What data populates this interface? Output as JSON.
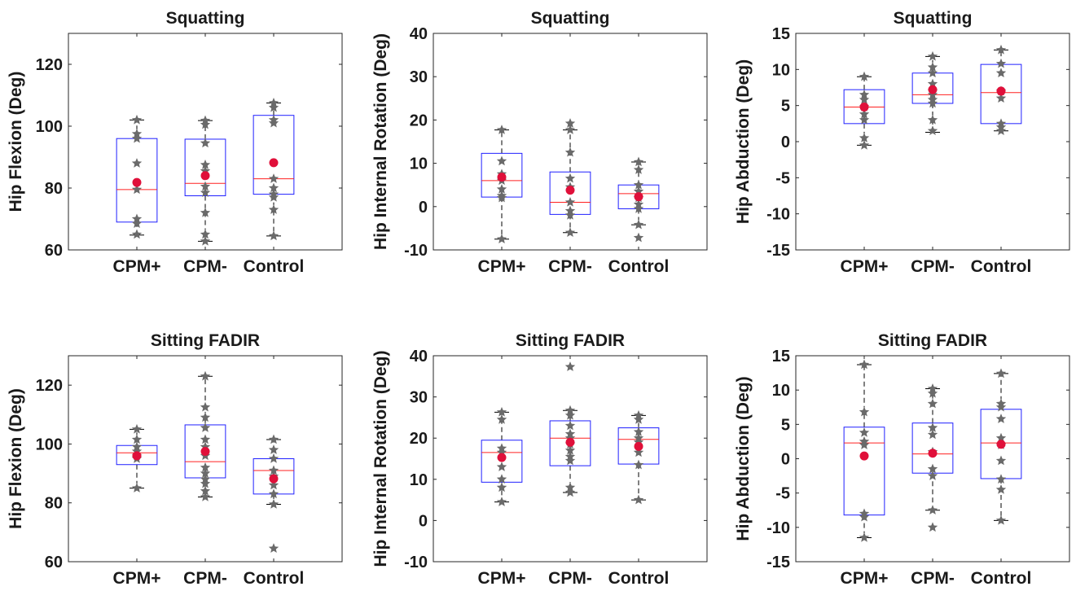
{
  "colors": {
    "box": "#2020ff",
    "median": "#ff2020",
    "mean": "#e0103a",
    "points": "#6a6a6a",
    "whisker": "#000000",
    "axes": "#262626"
  },
  "chart_data": [
    {
      "type": "box",
      "title": "Squatting",
      "ylabel": "Hip Flexion (Deg)",
      "ylim": [
        60,
        130
      ],
      "yticks": [
        "60",
        "80",
        "100",
        "120"
      ],
      "categories": [
        "CPM+",
        "CPM-",
        "Control"
      ],
      "groups": [
        {
          "q1": 69,
          "median": 79.5,
          "q3": 96,
          "whisker_low": 64.8,
          "whisker_high": 102,
          "mean": 81.8,
          "points": [
            102,
            97.5,
            96,
            88,
            79.5,
            70,
            68.5,
            65
          ]
        },
        {
          "q1": 77.5,
          "median": 81.5,
          "q3": 95.8,
          "whisker_low": 62.8,
          "whisker_high": 101.8,
          "mean": 84,
          "points": [
            101.8,
            100.5,
            94.5,
            87.5,
            85.5,
            80.5,
            78.5,
            72,
            65,
            62.8
          ]
        },
        {
          "q1": 78,
          "median": 83,
          "q3": 103.5,
          "whisker_low": 64.5,
          "whisker_high": 107.5,
          "mean": 88.2,
          "points": [
            107.5,
            106,
            102,
            101,
            83,
            80,
            78,
            77,
            73,
            64.5
          ]
        }
      ]
    },
    {
      "type": "box",
      "title": "Squatting",
      "ylabel": "Hip Internal Rotation (Deg)",
      "ylim": [
        -10,
        40
      ],
      "yticks": [
        "-10",
        "0",
        "10",
        "20",
        "30",
        "40"
      ],
      "categories": [
        "CPM+",
        "CPM-",
        "Control"
      ],
      "groups": [
        {
          "q1": 2.2,
          "median": 6,
          "q3": 12.3,
          "whisker_low": -7.5,
          "whisker_high": 17.7,
          "mean": 6.8,
          "points": [
            17.7,
            10.5,
            7.5,
            6,
            4,
            2.5,
            2,
            -7.5
          ]
        },
        {
          "q1": -1.8,
          "median": 1,
          "q3": 8,
          "whisker_low": -6,
          "whisker_high": 17.7,
          "mean": 3.8,
          "points": [
            19.2,
            17.7,
            12.5,
            6.5,
            4.5,
            1,
            -1,
            -2,
            -6
          ]
        },
        {
          "q1": -0.5,
          "median": 3,
          "q3": 5,
          "whisker_low": -4.2,
          "whisker_high": 10.3,
          "mean": 2.3,
          "points": [
            10.3,
            8.5,
            5,
            3.5,
            2,
            0.5,
            -0.5,
            -4.2,
            -7.2
          ]
        }
      ]
    },
    {
      "type": "box",
      "title": "Squatting",
      "ylabel": "Hip Abduction (Deg)",
      "ylim": [
        -15,
        15
      ],
      "yticks": [
        "-15",
        "-10",
        "-5",
        "0",
        "5",
        "10",
        "15"
      ],
      "categories": [
        "CPM+",
        "CPM-",
        "Control"
      ],
      "groups": [
        {
          "q1": 2.5,
          "median": 4.8,
          "q3": 7.2,
          "whisker_low": -0.5,
          "whisker_high": 9,
          "mean": 4.8,
          "points": [
            9,
            6.5,
            5.8,
            4.8,
            3.8,
            3,
            0.5,
            -0.5
          ]
        },
        {
          "q1": 5.3,
          "median": 6.5,
          "q3": 9.5,
          "whisker_low": 1.3,
          "whisker_high": 11.8,
          "mean": 7.2,
          "points": [
            11.8,
            10.3,
            9.5,
            8,
            7,
            6.5,
            5.8,
            5.3,
            3,
            1.5
          ]
        },
        {
          "q1": 2.5,
          "median": 6.8,
          "q3": 10.7,
          "whisker_low": 1.5,
          "whisker_high": 12.7,
          "mean": 7,
          "points": [
            12.7,
            10.8,
            9.5,
            7,
            6,
            2.5,
            2,
            1.5
          ]
        }
      ]
    },
    {
      "type": "box",
      "title": "Sitting FADIR",
      "ylabel": "Hip Flexion (Deg)",
      "ylim": [
        60,
        130
      ],
      "yticks": [
        "60",
        "80",
        "100",
        "120"
      ],
      "categories": [
        "CPM+",
        "CPM-",
        "Control"
      ],
      "groups": [
        {
          "q1": 93,
          "median": 97,
          "q3": 99.5,
          "whisker_low": 85,
          "whisker_high": 105,
          "mean": 96,
          "points": [
            105,
            101.5,
            99,
            97.5,
            96,
            95,
            85
          ]
        },
        {
          "q1": 88.5,
          "median": 94,
          "q3": 106.5,
          "whisker_low": 82,
          "whisker_high": 123,
          "mean": 97.5,
          "points": [
            123,
            112.5,
            109,
            105.5,
            101.5,
            99,
            96,
            92,
            90,
            88,
            86.5,
            84,
            82
          ]
        },
        {
          "q1": 83,
          "median": 91,
          "q3": 95,
          "whisker_low": 79.5,
          "whisker_high": 101.5,
          "mean": 88.2,
          "points": [
            101.5,
            98,
            95,
            91,
            89,
            86,
            83,
            79.5,
            64.5
          ]
        }
      ]
    },
    {
      "type": "box",
      "title": "Sitting FADIR",
      "ylabel": "Hip Internal Rotation (Deg)",
      "ylim": [
        -10,
        40
      ],
      "yticks": [
        "-10",
        "0",
        "10",
        "20",
        "30",
        "40"
      ],
      "categories": [
        "CPM+",
        "CPM-",
        "Control"
      ],
      "groups": [
        {
          "q1": 9.3,
          "median": 16.5,
          "q3": 19.5,
          "whisker_low": 4.5,
          "whisker_high": 26.3,
          "mean": 15.3,
          "points": [
            26.3,
            24.5,
            17.5,
            16.5,
            13,
            10,
            8,
            4.5
          ]
        },
        {
          "q1": 13.3,
          "median": 20,
          "q3": 24.2,
          "whisker_low": 6.8,
          "whisker_high": 26.7,
          "mean": 19,
          "points": [
            37.3,
            26.7,
            25.5,
            23,
            21,
            20,
            18.5,
            17,
            15.5,
            14.5,
            8,
            6.8
          ]
        },
        {
          "q1": 13.7,
          "median": 19.7,
          "q3": 22.5,
          "whisker_low": 5,
          "whisker_high": 25.5,
          "mean": 18,
          "points": [
            25.5,
            24.5,
            21.5,
            20,
            19,
            16.5,
            13.5,
            5
          ]
        }
      ]
    },
    {
      "type": "box",
      "title": "Sitting FADIR",
      "ylabel": "Hip Abduction (Deg)",
      "ylim": [
        -15,
        15
      ],
      "yticks": [
        "-15",
        "-10",
        "-5",
        "0",
        "5",
        "10",
        "15"
      ],
      "categories": [
        "CPM+",
        "CPM-",
        "Control"
      ],
      "groups": [
        {
          "q1": -8.2,
          "median": 2.3,
          "q3": 4.6,
          "whisker_low": -11.5,
          "whisker_high": 13.7,
          "mean": 0.4,
          "points": [
            13.7,
            6.8,
            3.8,
            2.5,
            2,
            -8,
            -8.5,
            -11.5
          ]
        },
        {
          "q1": -2.1,
          "median": 0.7,
          "q3": 5.2,
          "whisker_low": -7.5,
          "whisker_high": 10.2,
          "mean": 0.8,
          "points": [
            10.2,
            9.5,
            8,
            4.5,
            3.5,
            1,
            -1.5,
            -2.5,
            -7.5,
            -10
          ]
        },
        {
          "q1": -2.9,
          "median": 2.3,
          "q3": 7.2,
          "whisker_low": -9,
          "whisker_high": 12.4,
          "mean": 2.1,
          "points": [
            12.4,
            8,
            7.5,
            5.8,
            3,
            2,
            -0.3,
            -3,
            -4.5,
            -9
          ]
        }
      ]
    }
  ]
}
